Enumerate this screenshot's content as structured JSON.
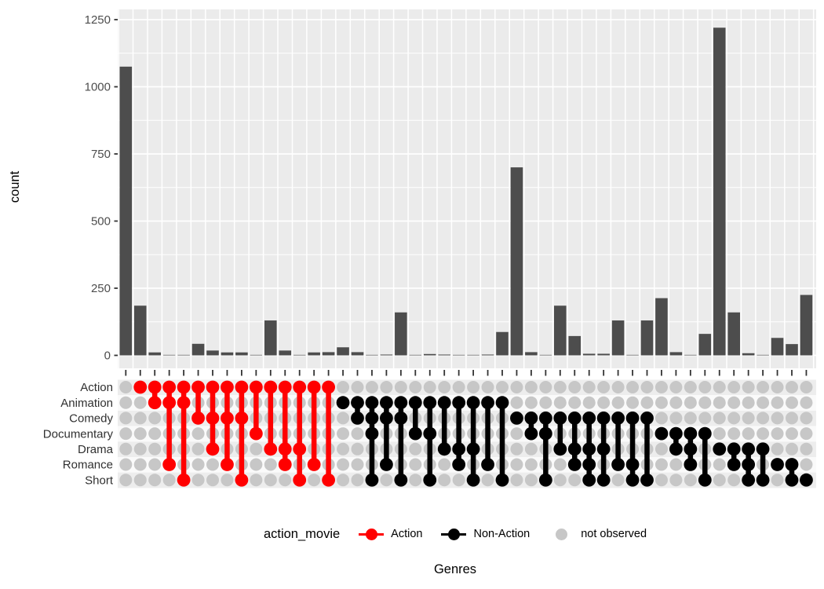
{
  "chart_data": {
    "type": "bar",
    "variant": "upset-combination-matrix",
    "title": "",
    "ylabel": "count",
    "xlabel": "Genres",
    "ylim": [
      0,
      1250
    ],
    "y_ticks": [
      0,
      250,
      500,
      750,
      1000,
      1250
    ],
    "grid": true,
    "categories": [
      "Action",
      "Animation",
      "Comedy",
      "Documentary",
      "Drama",
      "Romance",
      "Short"
    ],
    "legend": {
      "title": "action_movie",
      "position": "bottom",
      "entries": [
        {
          "label": "Action",
          "color": "#FF0000",
          "glyph": "dot-line"
        },
        {
          "label": "Non-Action",
          "color": "#000000",
          "glyph": "dot-line"
        },
        {
          "label": "not observed",
          "color": "#C7C7C7",
          "glyph": "dot"
        }
      ]
    },
    "colors": {
      "bar": "#4D4D4D",
      "action": "#FF0000",
      "non_action": "#000000",
      "not_observed": "#C7C7C7",
      "panel_background": "#EBEBEB",
      "stripe_odd": "#EDEDED",
      "stripe_even": "#FAFAFA",
      "gridline": "#FFFFFF",
      "axis_text": "#4D4D4D"
    },
    "combos": [
      {
        "genres": [],
        "count": 1075
      },
      {
        "genres": [
          "Action"
        ],
        "count": 185
      },
      {
        "genres": [
          "Action",
          "Animation"
        ],
        "count": 11
      },
      {
        "genres": [
          "Action",
          "Animation",
          "Romance"
        ],
        "count": 2
      },
      {
        "genres": [
          "Action",
          "Animation",
          "Short"
        ],
        "count": 2
      },
      {
        "genres": [
          "Action",
          "Comedy"
        ],
        "count": 43
      },
      {
        "genres": [
          "Action",
          "Comedy",
          "Drama"
        ],
        "count": 18
      },
      {
        "genres": [
          "Action",
          "Comedy",
          "Romance"
        ],
        "count": 11
      },
      {
        "genres": [
          "Action",
          "Comedy",
          "Short"
        ],
        "count": 11
      },
      {
        "genres": [
          "Action",
          "Documentary"
        ],
        "count": 2
      },
      {
        "genres": [
          "Action",
          "Drama"
        ],
        "count": 130
      },
      {
        "genres": [
          "Action",
          "Drama",
          "Romance"
        ],
        "count": 18
      },
      {
        "genres": [
          "Action",
          "Drama",
          "Short"
        ],
        "count": 2
      },
      {
        "genres": [
          "Action",
          "Romance"
        ],
        "count": 11
      },
      {
        "genres": [
          "Action",
          "Short"
        ],
        "count": 12
      },
      {
        "genres": [
          "Animation"
        ],
        "count": 30
      },
      {
        "genres": [
          "Animation",
          "Comedy"
        ],
        "count": 12
      },
      {
        "genres": [
          "Animation",
          "Comedy",
          "Documentary",
          "Short"
        ],
        "count": 2
      },
      {
        "genres": [
          "Animation",
          "Comedy",
          "Romance"
        ],
        "count": 3
      },
      {
        "genres": [
          "Animation",
          "Comedy",
          "Short"
        ],
        "count": 160
      },
      {
        "genres": [
          "Animation",
          "Documentary"
        ],
        "count": 2
      },
      {
        "genres": [
          "Animation",
          "Documentary",
          "Short"
        ],
        "count": 5
      },
      {
        "genres": [
          "Animation",
          "Drama"
        ],
        "count": 3
      },
      {
        "genres": [
          "Animation",
          "Drama",
          "Romance"
        ],
        "count": 2
      },
      {
        "genres": [
          "Animation",
          "Drama",
          "Short"
        ],
        "count": 2
      },
      {
        "genres": [
          "Animation",
          "Romance"
        ],
        "count": 3
      },
      {
        "genres": [
          "Animation",
          "Short"
        ],
        "count": 87
      },
      {
        "genres": [
          "Comedy"
        ],
        "count": 700
      },
      {
        "genres": [
          "Comedy",
          "Documentary"
        ],
        "count": 12
      },
      {
        "genres": [
          "Comedy",
          "Documentary",
          "Short"
        ],
        "count": 2
      },
      {
        "genres": [
          "Comedy",
          "Drama"
        ],
        "count": 185
      },
      {
        "genres": [
          "Comedy",
          "Drama",
          "Romance"
        ],
        "count": 72
      },
      {
        "genres": [
          "Comedy",
          "Drama",
          "Romance",
          "Short"
        ],
        "count": 6
      },
      {
        "genres": [
          "Comedy",
          "Drama",
          "Short"
        ],
        "count": 6
      },
      {
        "genres": [
          "Comedy",
          "Romance"
        ],
        "count": 130
      },
      {
        "genres": [
          "Comedy",
          "Romance",
          "Short"
        ],
        "count": 2
      },
      {
        "genres": [
          "Comedy",
          "Short"
        ],
        "count": 130
      },
      {
        "genres": [
          "Documentary"
        ],
        "count": 213
      },
      {
        "genres": [
          "Documentary",
          "Drama"
        ],
        "count": 12
      },
      {
        "genres": [
          "Documentary",
          "Drama",
          "Romance"
        ],
        "count": 2
      },
      {
        "genres": [
          "Documentary",
          "Short"
        ],
        "count": 80
      },
      {
        "genres": [
          "Drama"
        ],
        "count": 1220
      },
      {
        "genres": [
          "Drama",
          "Romance"
        ],
        "count": 160
      },
      {
        "genres": [
          "Drama",
          "Romance",
          "Short"
        ],
        "count": 8
      },
      {
        "genres": [
          "Drama",
          "Short"
        ],
        "count": 2
      },
      {
        "genres": [
          "Romance"
        ],
        "count": 65
      },
      {
        "genres": [
          "Romance",
          "Short"
        ],
        "count": 42
      },
      {
        "genres": [
          "Short"
        ],
        "count": 225
      }
    ]
  }
}
